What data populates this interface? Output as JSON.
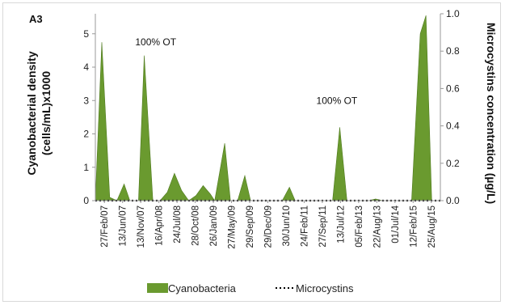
{
  "chart_data": {
    "type": "area",
    "panel_label": "A3",
    "y_left_label_line1": "Cyanobacterial density",
    "y_left_label_line2": "(cells/mL)x1000",
    "y_right_label": "Microcystins concentration (µg/L)",
    "y_left_ticks": [
      "0",
      "1",
      "2",
      "3",
      "4",
      "5"
    ],
    "y_right_ticks": [
      "0.0",
      "0.2",
      "0.4",
      "0.6",
      "0.8",
      "1.0"
    ],
    "ylim_left": [
      0,
      5.6
    ],
    "ylim_right": [
      0,
      1.0
    ],
    "x_ticks": [
      "27/Feb/07",
      "13/Jun/07",
      "13/Nov/07",
      "16/Apr/08",
      "24/Jul/08",
      "28/Oct/08",
      "26/Jan/09",
      "27/May/09",
      "29/Sep/09",
      "29/Dec/09",
      "30/Jun/10",
      "24/Feb/11",
      "27/Sep/11",
      "13/Jul/12",
      "05/Feb/13",
      "22/Aug/13",
      "01/Jul/14",
      "12/Feb/15",
      "25/Aug/15"
    ],
    "series": [
      {
        "name": "Cyanobacteria",
        "color": "#6a9a2f",
        "points": [
          [
            0,
            0
          ],
          [
            0.45,
            4.75
          ],
          [
            1,
            0.1
          ],
          [
            1.5,
            0
          ],
          [
            2,
            0.5
          ],
          [
            2.4,
            0
          ],
          [
            3,
            0
          ],
          [
            3.4,
            4.35
          ],
          [
            4,
            0
          ],
          [
            4.5,
            0
          ],
          [
            5,
            0.25
          ],
          [
            5.5,
            0.82
          ],
          [
            6,
            0.3
          ],
          [
            6.5,
            0
          ],
          [
            7,
            0.15
          ],
          [
            7.5,
            0.45
          ],
          [
            8,
            0.2
          ],
          [
            8.3,
            0
          ],
          [
            9,
            1.72
          ],
          [
            9.4,
            0
          ],
          [
            9.9,
            0
          ],
          [
            10.4,
            0.75
          ],
          [
            10.8,
            0
          ],
          [
            11,
            0
          ],
          [
            13,
            0
          ],
          [
            13.5,
            0.4
          ],
          [
            13.9,
            0
          ],
          [
            15,
            0
          ],
          [
            16.5,
            0
          ],
          [
            17,
            2.2
          ],
          [
            17.5,
            0
          ],
          [
            19,
            0
          ],
          [
            19.5,
            0.05
          ],
          [
            20,
            0
          ],
          [
            21.5,
            0
          ],
          [
            22,
            0
          ],
          [
            22.6,
            5.0
          ],
          [
            23.0,
            5.55
          ],
          [
            23.4,
            0
          ]
        ]
      },
      {
        "name": "Microcystins",
        "color": "#000000",
        "values_note": "",
        "constant": 0.0
      }
    ],
    "annotations": [
      {
        "text": "100% OT",
        "x": 4.2,
        "y": 4.65
      },
      {
        "text": "100% OT",
        "x": 16.8,
        "y": 2.9
      }
    ],
    "legend": [
      "Cyanobacteria",
      "Microcystins"
    ],
    "legend_position": "bottom"
  }
}
